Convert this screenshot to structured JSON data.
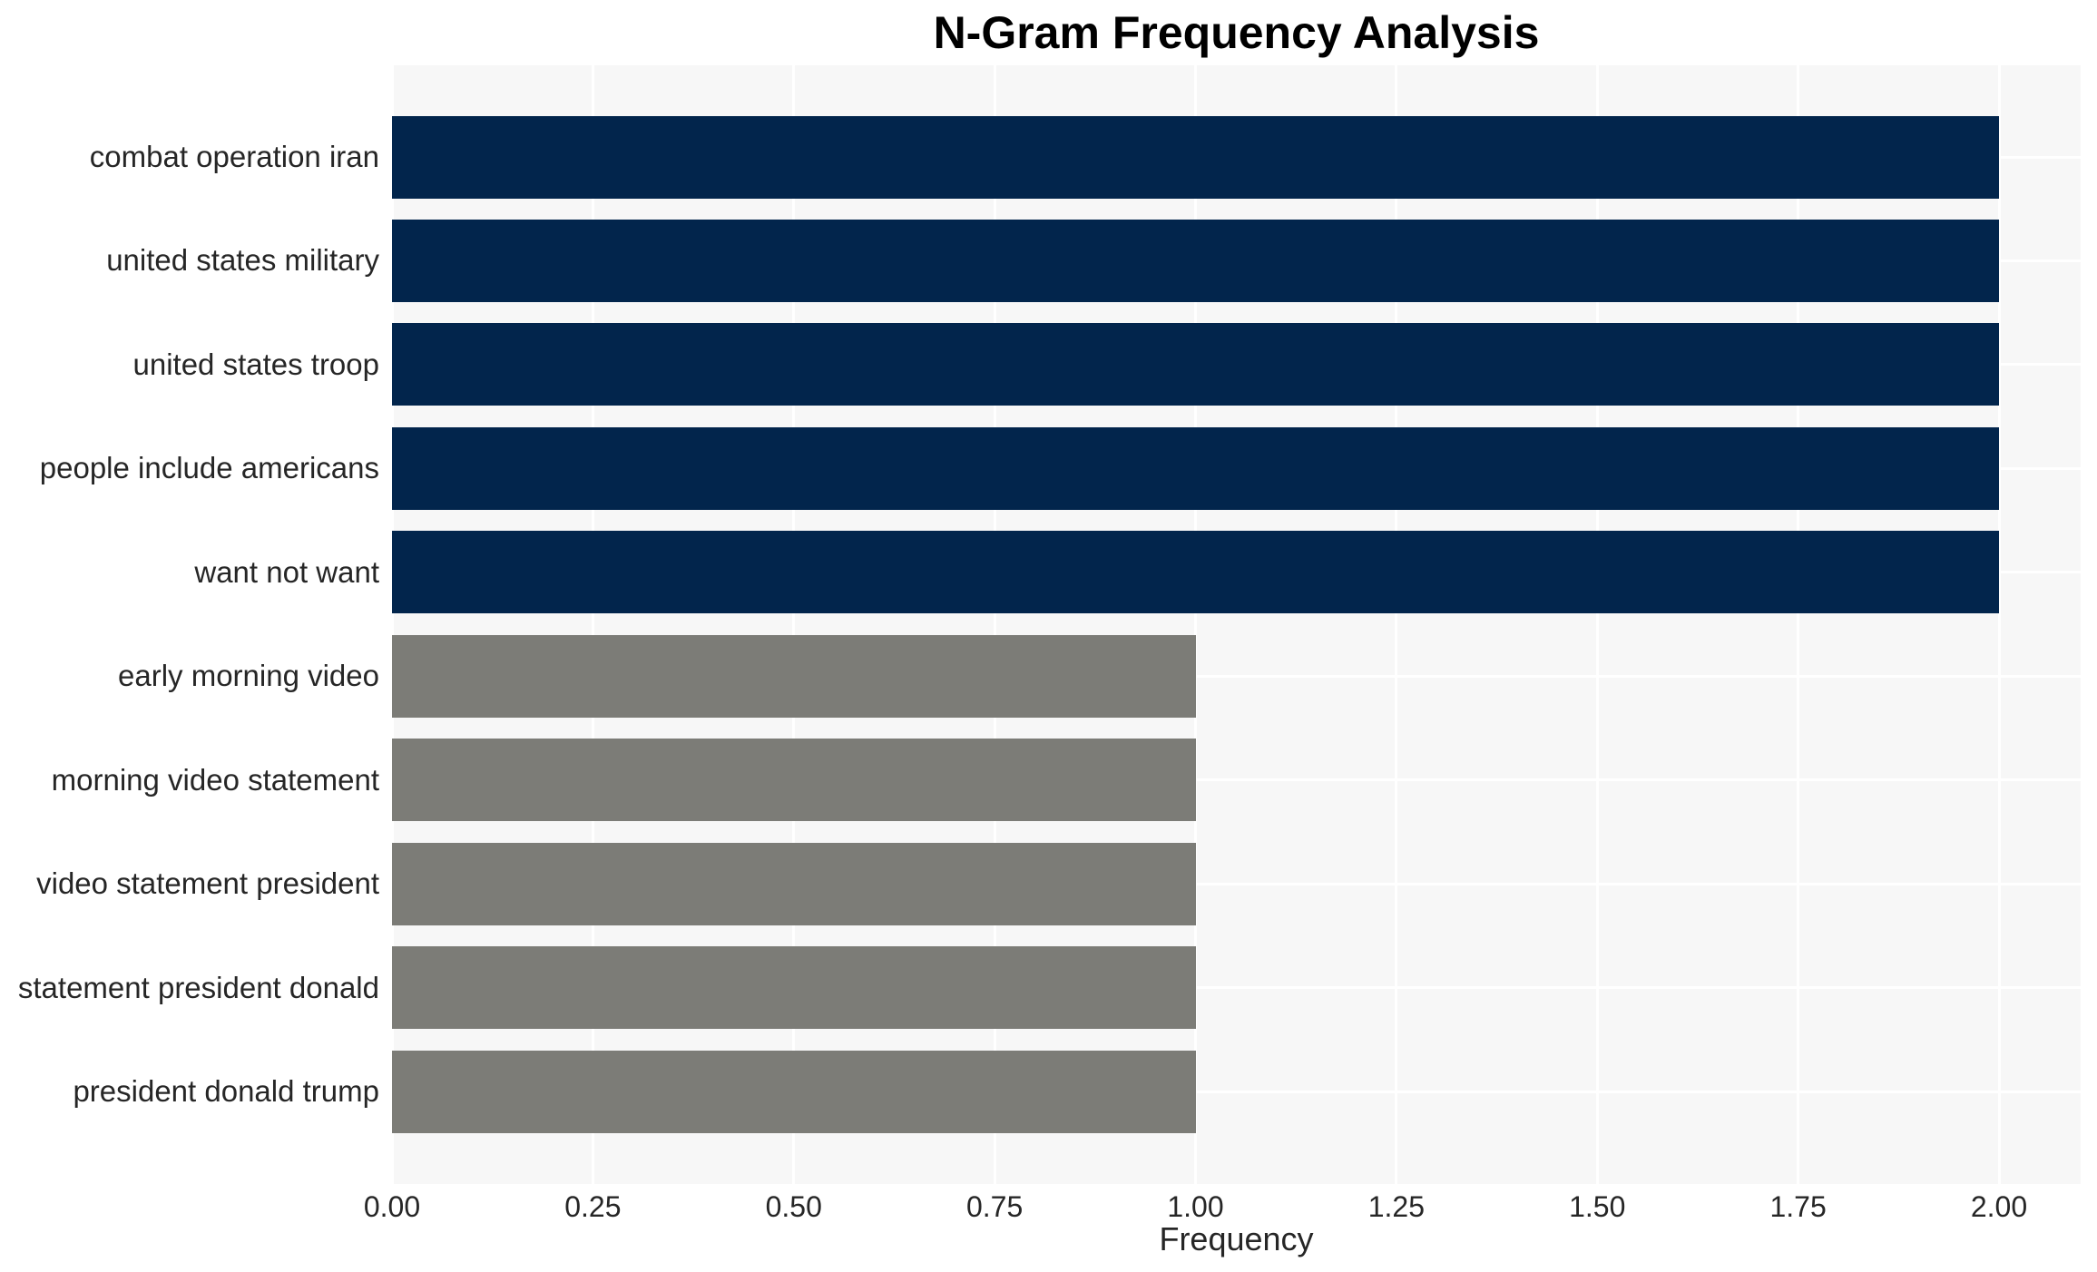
{
  "chart_data": {
    "type": "bar",
    "orientation": "horizontal",
    "title": "N-Gram Frequency Analysis",
    "xlabel": "Frequency",
    "ylabel": "",
    "categories": [
      "combat operation iran",
      "united states military",
      "united states troop",
      "people include americans",
      "want not want",
      "early morning video",
      "morning video statement",
      "video statement president",
      "statement president donald",
      "president donald trump"
    ],
    "values": [
      2,
      2,
      2,
      2,
      2,
      1,
      1,
      1,
      1,
      1
    ],
    "bar_colors": [
      "#02254C",
      "#02254C",
      "#02254C",
      "#02254C",
      "#02254C",
      "#7C7C77",
      "#7C7C77",
      "#7C7C77",
      "#7C7C77",
      "#7C7C77"
    ],
    "xticks": [
      0.0,
      0.25,
      0.5,
      0.75,
      1.0,
      1.25,
      1.5,
      1.75,
      2.0
    ],
    "xtick_labels": [
      "0.00",
      "0.25",
      "0.50",
      "0.75",
      "1.00",
      "1.25",
      "1.50",
      "1.75",
      "2.00"
    ],
    "xlim": [
      0,
      2.1
    ],
    "grid": true,
    "legend": false,
    "colors": {
      "page_bg": "#FFFFFF",
      "plot_bg": "#F7F7F7",
      "grid": "#FFFFFF",
      "bar_high": "#02254C",
      "bar_low": "#7C7C77",
      "text": "#262626",
      "title": "#000000"
    }
  }
}
